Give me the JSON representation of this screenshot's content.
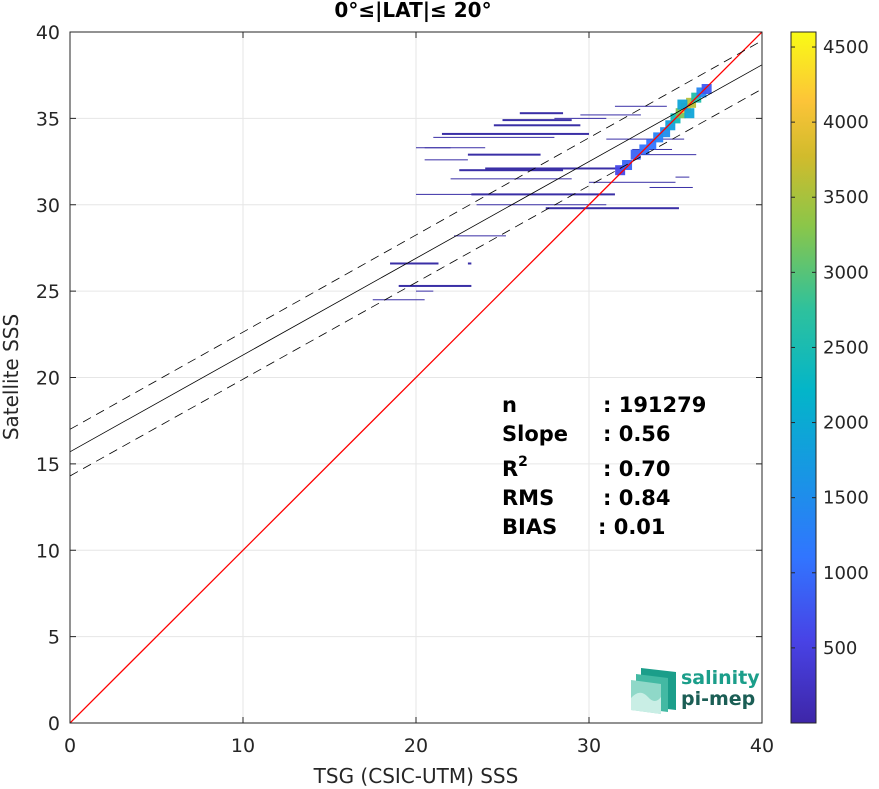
{
  "chart_data": {
    "type": "scatter",
    "title": "0°≤|LAT|≤ 20°",
    "xlabel": "TSG (CSIC-UTM) SSS",
    "ylabel": "Satellite SSS",
    "xlim": [
      0,
      40
    ],
    "ylim": [
      0,
      40
    ],
    "xticks": [
      "0",
      "10",
      "20",
      "30",
      "40"
    ],
    "yticks": [
      "0",
      "5",
      "10",
      "15",
      "20",
      "25",
      "30",
      "35",
      "40"
    ],
    "grid": true,
    "colorbar": {
      "range": [
        0,
        4600
      ],
      "ticks": [
        "500",
        "1000",
        "1500",
        "2000",
        "2500",
        "3000",
        "3500",
        "4000",
        "4500"
      ],
      "colormap": "parula"
    },
    "lines": {
      "one_to_one": {
        "x": [
          0,
          40
        ],
        "y": [
          0,
          40
        ],
        "color": "#ff0000"
      },
      "regression": {
        "x": [
          0,
          40
        ],
        "y": [
          15.7,
          38.1
        ],
        "color": "#000000"
      },
      "upper_bound": {
        "x": [
          0,
          40
        ],
        "y": [
          17.0,
          39.5
        ],
        "color": "#000000",
        "style": "dashed"
      },
      "lower_bound": {
        "x": [
          0,
          40
        ],
        "y": [
          14.3,
          36.7
        ],
        "color": "#000000",
        "style": "dashed"
      }
    },
    "density_segments": [
      {
        "x0": 18.5,
        "x1": 21.3,
        "y": 26.6,
        "w": 2
      },
      {
        "x0": 23.0,
        "x1": 23.2,
        "y": 26.6,
        "w": 2
      },
      {
        "x0": 19.0,
        "x1": 23.2,
        "y": 25.3,
        "w": 2
      },
      {
        "x0": 20.0,
        "x1": 21.0,
        "y": 25.0,
        "w": 1
      },
      {
        "x0": 17.5,
        "x1": 20.5,
        "y": 24.5,
        "w": 1
      },
      {
        "x0": 22.2,
        "x1": 25.2,
        "y": 28.2,
        "w": 1
      },
      {
        "x0": 20.0,
        "x1": 29.5,
        "y": 30.6,
        "w": 1
      },
      {
        "x0": 23.2,
        "x1": 31.5,
        "y": 30.6,
        "w": 2
      },
      {
        "x0": 23.5,
        "x1": 31.0,
        "y": 30.0,
        "w": 1
      },
      {
        "x0": 27.5,
        "x1": 35.2,
        "y": 29.8,
        "w": 2
      },
      {
        "x0": 22.0,
        "x1": 29.0,
        "y": 31.5,
        "w": 1
      },
      {
        "x0": 22.5,
        "x1": 28.5,
        "y": 32.0,
        "w": 2
      },
      {
        "x0": 24.0,
        "x1": 32.0,
        "y": 32.1,
        "w": 2
      },
      {
        "x0": 30.0,
        "x1": 35.0,
        "y": 31.3,
        "w": 1
      },
      {
        "x0": 20.5,
        "x1": 23.0,
        "y": 32.6,
        "w": 1
      },
      {
        "x0": 23.0,
        "x1": 27.2,
        "y": 32.9,
        "w": 2
      },
      {
        "x0": 20.5,
        "x1": 24.0,
        "y": 33.3,
        "w": 1
      },
      {
        "x0": 31.0,
        "x1": 35.5,
        "y": 33.8,
        "w": 1
      },
      {
        "x0": 21.0,
        "x1": 28.0,
        "y": 33.9,
        "w": 1
      },
      {
        "x0": 21.5,
        "x1": 30.0,
        "y": 34.1,
        "w": 2
      },
      {
        "x0": 24.5,
        "x1": 29.5,
        "y": 34.6,
        "w": 2
      },
      {
        "x0": 25.0,
        "x1": 29.0,
        "y": 34.9,
        "w": 2
      },
      {
        "x0": 26.0,
        "x1": 28.5,
        "y": 35.3,
        "w": 2
      },
      {
        "x0": 28.0,
        "x1": 31.0,
        "y": 35.0,
        "w": 1
      },
      {
        "x0": 29.5,
        "x1": 33.0,
        "y": 35.2,
        "w": 1
      },
      {
        "x0": 31.5,
        "x1": 34.5,
        "y": 35.7,
        "w": 1
      },
      {
        "x0": 32.5,
        "x1": 34.8,
        "y": 33.2,
        "w": 1
      },
      {
        "x0": 33.0,
        "x1": 36.2,
        "y": 32.9,
        "w": 1
      },
      {
        "x0": 35.0,
        "x1": 35.8,
        "y": 31.6,
        "w": 1
      },
      {
        "x0": 33.5,
        "x1": 36.0,
        "y": 31.0,
        "w": 1
      },
      {
        "x0": 20.0,
        "x1": 22.0,
        "y": 33.3,
        "w": 1
      }
    ],
    "dense_cloud": [
      {
        "x": 31.8,
        "y": 32.0,
        "c": 600
      },
      {
        "x": 32.2,
        "y": 32.3,
        "c": 900
      },
      {
        "x": 32.7,
        "y": 32.9,
        "c": 900
      },
      {
        "x": 33.2,
        "y": 33.2,
        "c": 1100
      },
      {
        "x": 33.6,
        "y": 33.5,
        "c": 1100
      },
      {
        "x": 34.0,
        "y": 33.9,
        "c": 1300
      },
      {
        "x": 34.4,
        "y": 34.2,
        "c": 1500
      },
      {
        "x": 34.7,
        "y": 34.6,
        "c": 1800
      },
      {
        "x": 35.0,
        "y": 35.0,
        "c": 2400
      },
      {
        "x": 35.3,
        "y": 35.3,
        "c": 3200
      },
      {
        "x": 35.6,
        "y": 35.6,
        "c": 4200
      },
      {
        "x": 35.9,
        "y": 35.9,
        "c": 3600
      },
      {
        "x": 36.2,
        "y": 36.2,
        "c": 2600
      },
      {
        "x": 36.5,
        "y": 36.5,
        "c": 1400
      },
      {
        "x": 36.8,
        "y": 36.7,
        "c": 800
      },
      {
        "x": 35.4,
        "y": 35.8,
        "c": 1900
      },
      {
        "x": 35.8,
        "y": 35.3,
        "c": 1900
      }
    ]
  },
  "stats": [
    {
      "key": "n",
      "value": ": 191279"
    },
    {
      "key": "Slope",
      "value": ": 0.56"
    },
    {
      "key": "R",
      "sup": "2",
      "value": ": 0.70"
    },
    {
      "key": "RMS",
      "value": ": 0.84"
    },
    {
      "key": "BIAS",
      "value": ": 0.01"
    }
  ],
  "logo": {
    "line1": "salinity",
    "line2": "pi-mep"
  },
  "colors": {
    "one_to_one": "#ff0000",
    "logo_text": "#1b9e8a"
  }
}
